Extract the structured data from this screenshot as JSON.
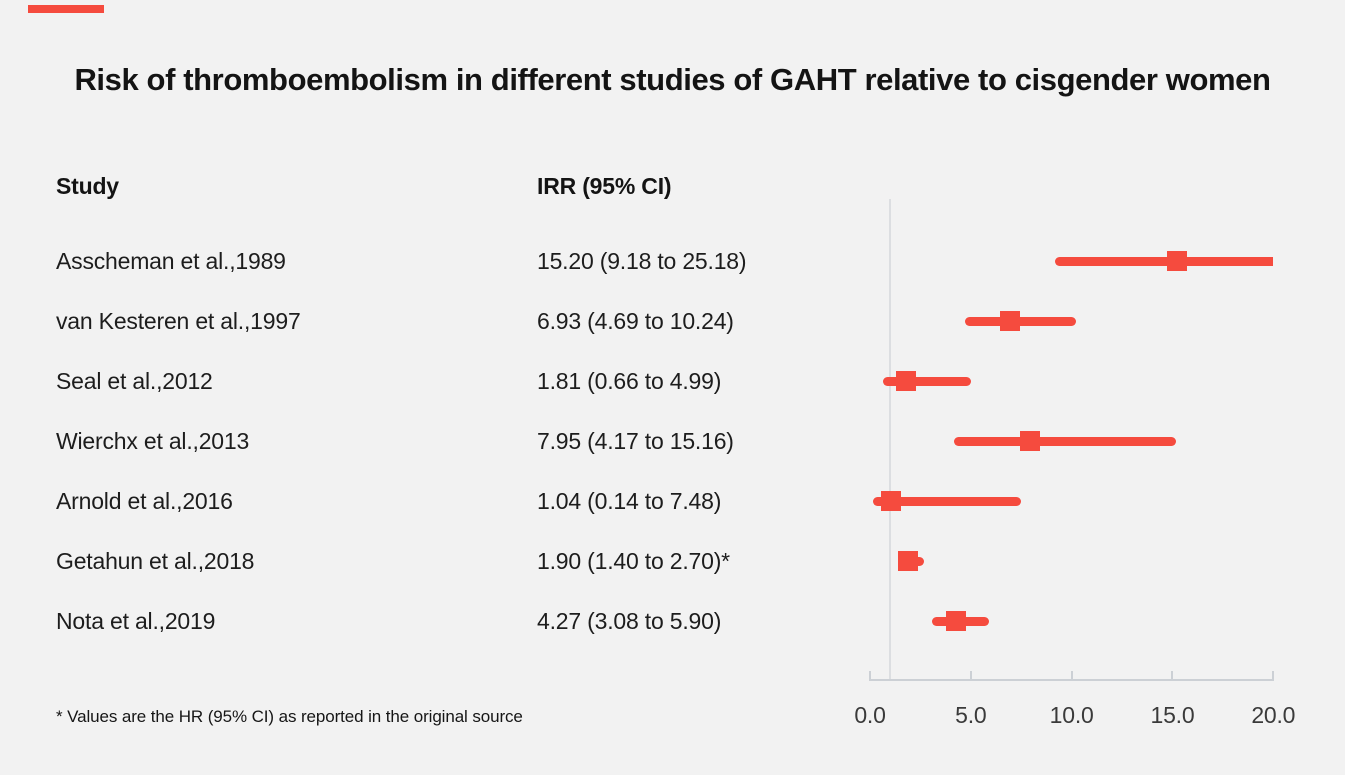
{
  "page": {
    "background_color": "#f2f2f2"
  },
  "brand_bar": {
    "color": "#f54b3e"
  },
  "title": "Risk of thromboembolism in different studies of GAHT relative to cisgender women",
  "columns": {
    "study": "Study",
    "irr": "IRR (95% CI)"
  },
  "footnote": "* Values are the HR (95% CI) as reported in the original source",
  "chart_data": {
    "type": "forest",
    "title": "Risk of thromboembolism in different studies of GAHT relative to cisgender women",
    "xlabel": "",
    "xlim": [
      0.0,
      20.0
    ],
    "x_ticks": [
      {
        "value": 0,
        "label": "0.0"
      },
      {
        "value": 5,
        "label": "5.0"
      },
      {
        "value": 10,
        "label": "10.0"
      },
      {
        "value": 15,
        "label": "15.0"
      },
      {
        "value": 20,
        "label": "20.0"
      }
    ],
    "reference_line_x": 1.0,
    "marker_color": "#f54b3e",
    "grid": "off",
    "studies": [
      {
        "label": "Asscheman et al.,1989",
        "irr_text": "15.20 (9.18 to 25.18)",
        "estimate": 15.2,
        "ci_low": 9.18,
        "ci_high": 25.18
      },
      {
        "label": "van Kesteren et al.,1997",
        "irr_text": "6.93 (4.69 to 10.24)",
        "estimate": 6.93,
        "ci_low": 4.69,
        "ci_high": 10.24
      },
      {
        "label": "Seal et al.,2012",
        "irr_text": "1.81 (0.66 to 4.99)",
        "estimate": 1.81,
        "ci_low": 0.66,
        "ci_high": 4.99
      },
      {
        "label": "Wierchx et al.,2013",
        "irr_text": "7.95 (4.17 to 15.16)",
        "estimate": 7.95,
        "ci_low": 4.17,
        "ci_high": 15.16
      },
      {
        "label": "Arnold et al.,2016",
        "irr_text": "1.04 (0.14 to 7.48)",
        "estimate": 1.04,
        "ci_low": 0.14,
        "ci_high": 7.48
      },
      {
        "label": "Getahun et al.,2018",
        "irr_text": "1.90 (1.40 to 2.70)*",
        "estimate": 1.9,
        "ci_low": 1.4,
        "ci_high": 2.7
      },
      {
        "label": "Nota et al.,2019",
        "irr_text": "4.27 (3.08 to 5.90)",
        "estimate": 4.27,
        "ci_low": 3.08,
        "ci_high": 5.9
      }
    ]
  }
}
